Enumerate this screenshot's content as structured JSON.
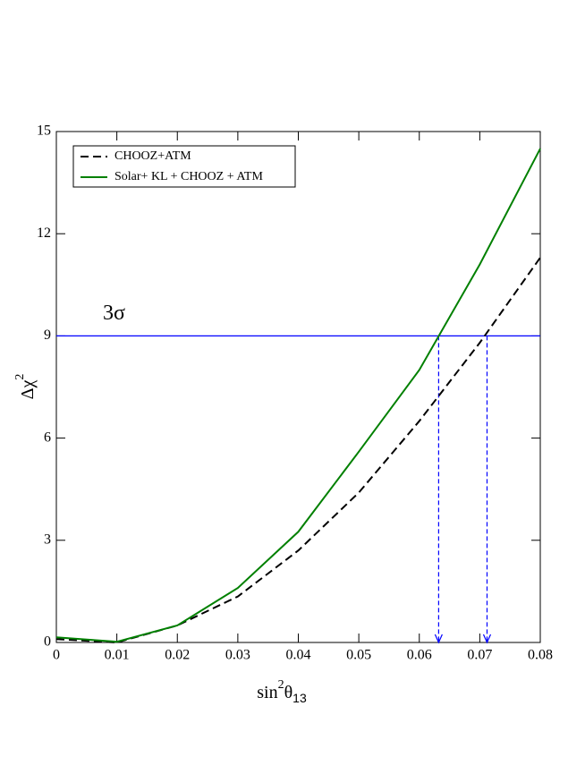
{
  "chart_data": {
    "type": "line",
    "x_label_parts": [
      "sin",
      "2",
      "θ",
      "13"
    ],
    "y_label_parts": [
      "Δχ",
      "2"
    ],
    "x": [
      0,
      0.01,
      0.02,
      0.03,
      0.04,
      0.05,
      0.06,
      0.07,
      0.08
    ],
    "series": [
      {
        "name": "CHOOZ+ATM",
        "color": "#000000",
        "dashed": true,
        "values": [
          0.1,
          0,
          0.5,
          1.35,
          2.7,
          4.4,
          6.5,
          8.8,
          11.3
        ]
      },
      {
        "name": "Solar+ KL + CHOOZ + ATM",
        "color": "#008000",
        "dashed": false,
        "values": [
          0.15,
          0.02,
          0.5,
          1.6,
          3.25,
          5.6,
          8.0,
          11.1,
          14.5
        ]
      }
    ],
    "reference_lines": [
      {
        "value": 9,
        "label": "3σ",
        "color": "#0000ff"
      }
    ],
    "arrows_x": [
      0.0632,
      0.0712
    ],
    "arrow_color": "#0000ff",
    "xlim": [
      0,
      0.08
    ],
    "xticks": [
      0,
      0.01,
      0.02,
      0.03,
      0.04,
      0.05,
      0.06,
      0.07,
      0.08
    ],
    "ylim": [
      0,
      15
    ],
    "yticks": [
      0,
      3,
      6,
      9,
      12,
      15
    ],
    "legend": "upper left"
  }
}
